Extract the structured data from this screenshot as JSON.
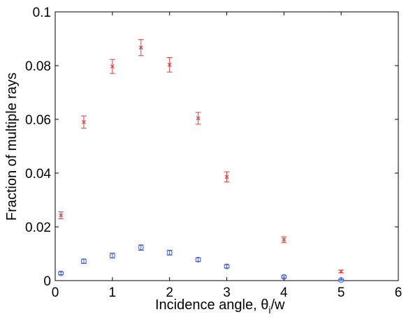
{
  "chart_data": {
    "type": "scatter",
    "title": "",
    "xlabel": "Incidence angle, θ",
    "xlabel_sub": "i",
    "xlabel_tail": "/w",
    "ylabel": "Fraction of multiple rays",
    "xlim": [
      0,
      6
    ],
    "ylim": [
      0,
      0.1
    ],
    "xticks": [
      0,
      1,
      2,
      3,
      4,
      5,
      6
    ],
    "yticks": [
      0,
      0.02,
      0.04,
      0.06,
      0.08,
      0.1
    ],
    "xtick_labels": [
      "0",
      "1",
      "2",
      "3",
      "4",
      "5",
      "6"
    ],
    "ytick_labels": [
      "0",
      "0.02",
      "0.04",
      "0.06",
      "0.08",
      "0.1"
    ],
    "grid": false,
    "legend": "none",
    "series": [
      {
        "marker": "x",
        "color": "#e8393a",
        "x": [
          0.1,
          0.5,
          1.0,
          1.5,
          2.0,
          2.5,
          3.0,
          4.0,
          5.0
        ],
        "y": [
          0.0243,
          0.059,
          0.0797,
          0.0867,
          0.0803,
          0.0604,
          0.0386,
          0.0152,
          0.0034
        ],
        "err": [
          0.0013,
          0.0023,
          0.0026,
          0.003,
          0.0027,
          0.0022,
          0.0019,
          0.0011,
          0.0005
        ]
      },
      {
        "marker": "o",
        "color": "#3a5bdc",
        "x": [
          0.1,
          0.5,
          1.0,
          1.5,
          2.0,
          2.5,
          3.0,
          4.0,
          5.0
        ],
        "y": [
          0.0027,
          0.0072,
          0.0093,
          0.0123,
          0.0104,
          0.0078,
          0.0053,
          0.0014,
          0.0002
        ],
        "err": [
          0.0005,
          0.0008,
          0.0009,
          0.001,
          0.0009,
          0.0007,
          0.0006,
          0.0004,
          0.0002
        ]
      }
    ]
  }
}
